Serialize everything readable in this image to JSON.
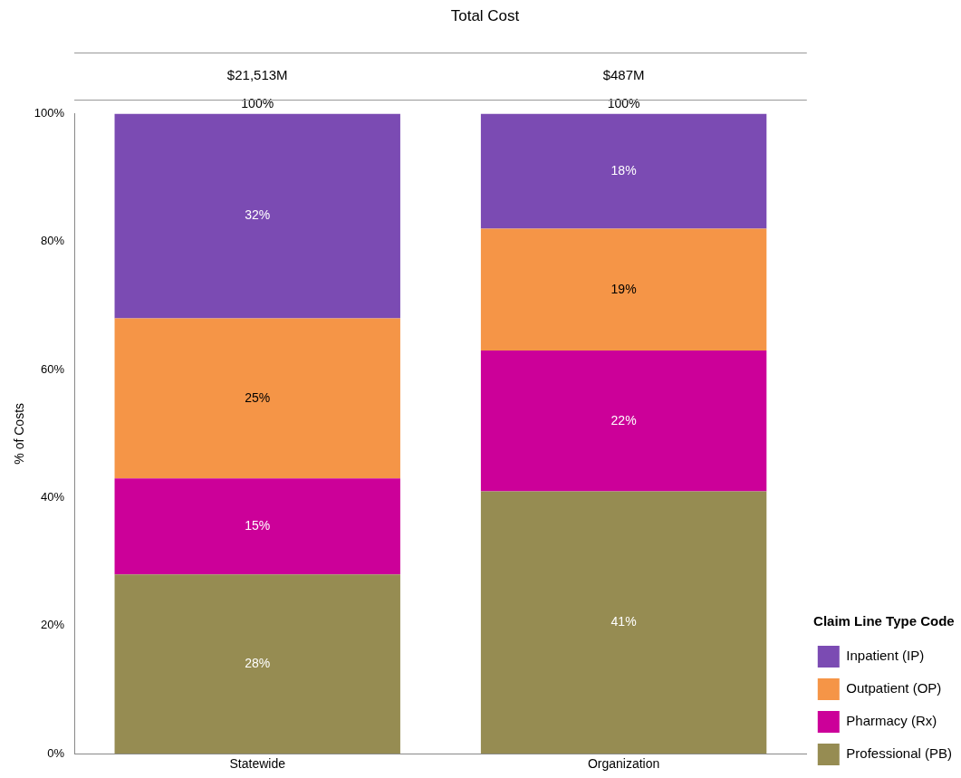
{
  "chart_data": {
    "type": "bar",
    "title": "Total Cost",
    "ylabel": "% of Costs",
    "legend_title": "Claim Line Type Code",
    "categories": [
      "Statewide",
      "Organization"
    ],
    "stacked": true,
    "series": [
      {
        "name": "Professional (PB)",
        "color": "#968c52",
        "values": [
          28,
          41
        ],
        "value_labels": [
          "28%",
          "41%"
        ]
      },
      {
        "name": "Pharmacy (Rx)",
        "color": "#cc0099",
        "values": [
          15,
          22
        ],
        "value_labels": [
          "15%",
          "22%"
        ]
      },
      {
        "name": "Outpatient (OP)",
        "color": "#f59547",
        "values": [
          25,
          19
        ],
        "value_labels": [
          "25%",
          "19%"
        ]
      },
      {
        "name": "Inpatient (IP)",
        "color": "#7b4bb3",
        "values": [
          32,
          18
        ],
        "value_labels": [
          "32%",
          "18%"
        ]
      }
    ],
    "totals": [
      "100%",
      "100%"
    ],
    "annotations": [
      "$21,513M",
      "$487M"
    ],
    "ylim": [
      0,
      100
    ],
    "yticks": [
      {
        "value": 0,
        "label": "0%"
      },
      {
        "value": 20,
        "label": "20%"
      },
      {
        "value": 40,
        "label": "40%"
      },
      {
        "value": 60,
        "label": "60%"
      },
      {
        "value": 80,
        "label": "80%"
      },
      {
        "value": 100,
        "label": "100%"
      }
    ],
    "grid": false,
    "legend": "right"
  }
}
